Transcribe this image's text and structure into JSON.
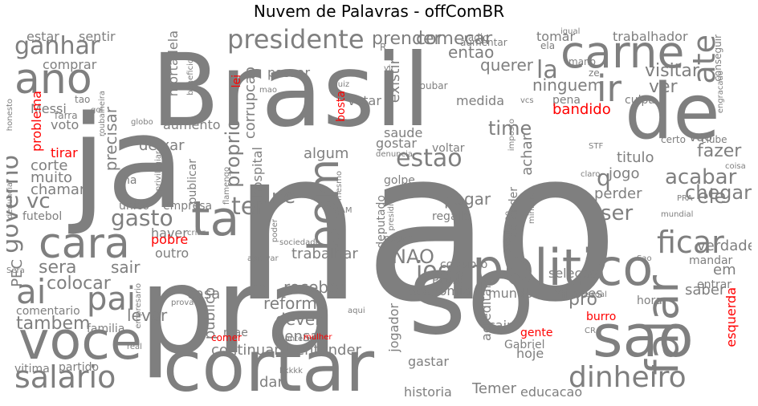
{
  "title": "Nuvem de Palavras - offComBR",
  "colors": {
    "grey": "#7f7f7f",
    "red": "#ff0000"
  },
  "words": [
    {
      "text": "nao",
      "color": "grey"
    },
    {
      "text": "pra",
      "color": "grey"
    },
    {
      "text": "Brasil",
      "color": "grey"
    },
    {
      "text": "ja",
      "color": "grey"
    },
    {
      "text": "so",
      "color": "grey"
    },
    {
      "text": "cortar",
      "color": "grey"
    },
    {
      "text": "ta",
      "color": "grey"
    },
    {
      "text": "de",
      "color": "grey"
    },
    {
      "text": "sao",
      "color": "grey"
    },
    {
      "text": "politico",
      "color": "grey"
    },
    {
      "text": "carne",
      "color": "grey"
    },
    {
      "text": "voce",
      "color": "grey"
    },
    {
      "text": "ano",
      "color": "grey"
    },
    {
      "text": "cara",
      "color": "grey"
    },
    {
      "text": "falar",
      "color": "grey"
    },
    {
      "text": "bom",
      "color": "grey"
    },
    {
      "text": "ir",
      "color": "grey"
    },
    {
      "text": "dinheiro",
      "color": "grey"
    },
    {
      "text": "ai",
      "color": "grey"
    },
    {
      "text": "salario",
      "color": "grey"
    },
    {
      "text": "pai",
      "color": "grey"
    },
    {
      "text": "ficar",
      "color": "grey"
    },
    {
      "text": "presidente",
      "color": "grey"
    },
    {
      "text": "ganhar",
      "color": "grey"
    },
    {
      "text": "estao",
      "color": "grey"
    },
    {
      "text": "governo",
      "color": "grey"
    },
    {
      "text": "ate",
      "color": "grey"
    },
    {
      "text": "jogar",
      "color": "grey"
    },
    {
      "text": "la",
      "color": "grey"
    },
    {
      "text": "ter",
      "color": "grey"
    },
    {
      "text": "gasto",
      "color": "grey"
    },
    {
      "text": "tambem",
      "color": "grey"
    },
    {
      "text": "proprio",
      "color": "grey"
    },
    {
      "text": "acabar",
      "color": "grey"
    },
    {
      "text": "fazer",
      "color": "grey"
    },
    {
      "text": "chegar",
      "color": "grey"
    },
    {
      "text": "ele",
      "color": "grey"
    },
    {
      "text": "q",
      "color": "grey"
    },
    {
      "text": "ser",
      "color": "grey"
    },
    {
      "text": "vc",
      "color": "grey"
    },
    {
      "text": "sera",
      "color": "grey"
    },
    {
      "text": "time",
      "color": "grey"
    },
    {
      "text": "visitar",
      "color": "grey"
    },
    {
      "text": "ver",
      "color": "grey"
    },
    {
      "text": "ninguem",
      "color": "grey"
    },
    {
      "text": "precisar",
      "color": "grey"
    },
    {
      "text": "prender",
      "color": "grey"
    },
    {
      "text": "comecar",
      "color": "grey"
    },
    {
      "text": "entao",
      "color": "grey"
    },
    {
      "text": "querer",
      "color": "grey"
    },
    {
      "text": "existir",
      "color": "grey"
    },
    {
      "text": "deixar",
      "color": "grey"
    },
    {
      "text": "corrupcao",
      "color": "grey"
    },
    {
      "text": "aumento",
      "color": "grey"
    },
    {
      "text": "saude",
      "color": "grey"
    },
    {
      "text": "gostar",
      "color": "grey"
    },
    {
      "text": "achar",
      "color": "grey"
    },
    {
      "text": "titulo",
      "color": "grey"
    },
    {
      "text": "jogo",
      "color": "grey"
    },
    {
      "text": "perder",
      "color": "grey"
    },
    {
      "text": "ne",
      "color": "grey"
    },
    {
      "text": "algum",
      "color": "grey"
    },
    {
      "text": "pagar",
      "color": "grey"
    },
    {
      "text": "NAO",
      "color": "grey"
    },
    {
      "text": "trabalhar",
      "color": "grey"
    },
    {
      "text": "receber",
      "color": "grey"
    },
    {
      "text": "reforma",
      "color": "grey"
    },
    {
      "text": "dever",
      "color": "grey"
    },
    {
      "text": "pensar",
      "color": "grey"
    },
    {
      "text": "continuar",
      "color": "grey"
    },
    {
      "text": "entender",
      "color": "grey"
    },
    {
      "text": "dar",
      "color": "grey"
    },
    {
      "text": "publico",
      "color": "grey"
    },
    {
      "text": "casa",
      "color": "grey"
    },
    {
      "text": "levar",
      "color": "grey"
    },
    {
      "text": "colocar",
      "color": "grey"
    },
    {
      "text": "sair",
      "color": "grey"
    },
    {
      "text": "outro",
      "color": "grey"
    },
    {
      "text": "haver",
      "color": "grey"
    },
    {
      "text": "jogador",
      "color": "grey"
    },
    {
      "text": "economia",
      "color": "grey"
    },
    {
      "text": "mundo",
      "color": "grey"
    },
    {
      "text": "acreditar",
      "color": "grey"
    },
    {
      "text": "pro",
      "color": "grey"
    },
    {
      "text": "saber",
      "color": "grey"
    },
    {
      "text": "verdade",
      "color": "grey"
    },
    {
      "text": "em",
      "color": "grey"
    },
    {
      "text": "historia",
      "color": "grey"
    },
    {
      "text": "Temer",
      "color": "grey"
    },
    {
      "text": "educacao",
      "color": "grey"
    },
    {
      "text": "hoje",
      "color": "grey"
    },
    {
      "text": "Gabriel",
      "color": "grey"
    },
    {
      "text": "cair",
      "color": "grey"
    },
    {
      "text": "gastar",
      "color": "grey"
    },
    {
      "text": "milhoes",
      "color": "grey"
    },
    {
      "text": "vao",
      "color": "grey"
    },
    {
      "text": "corte",
      "color": "grey"
    },
    {
      "text": "muito",
      "color": "grey"
    },
    {
      "text": "chamar",
      "color": "grey"
    },
    {
      "text": "voto",
      "color": "grey"
    },
    {
      "text": "Messi",
      "color": "grey"
    },
    {
      "text": "estar",
      "color": "grey"
    },
    {
      "text": "sentir",
      "color": "grey"
    },
    {
      "text": "comprar",
      "color": "grey"
    },
    {
      "text": "trabalhador",
      "color": "grey"
    },
    {
      "text": "tomar",
      "color": "grey"
    },
    {
      "text": "mortadela",
      "color": "grey"
    },
    {
      "text": "passar",
      "color": "grey"
    },
    {
      "text": "votar",
      "color": "grey"
    },
    {
      "text": "medida",
      "color": "grey"
    },
    {
      "text": "pena",
      "color": "grey"
    },
    {
      "text": "culpa",
      "color": "grey"
    },
    {
      "text": "hospital",
      "color": "grey"
    },
    {
      "text": "voltar",
      "color": "grey"
    },
    {
      "text": "deputado",
      "color": "grey"
    },
    {
      "text": "defender",
      "color": "grey"
    },
    {
      "text": "regalia",
      "color": "grey"
    },
    {
      "text": "golpe",
      "color": "grey"
    },
    {
      "text": "selecao",
      "color": "grey"
    },
    {
      "text": "pegar",
      "color": "grey"
    },
    {
      "text": "corrupto",
      "color": "grey"
    },
    {
      "text": "Paulo",
      "color": "grey"
    },
    {
      "text": "mandar",
      "color": "grey"
    },
    {
      "text": "entrar",
      "color": "grey"
    },
    {
      "text": "hora",
      "color": "grey"
    },
    {
      "text": "comentario",
      "color": "grey"
    },
    {
      "text": "familia",
      "color": "grey"
    },
    {
      "text": "vitima",
      "color": "grey"
    },
    {
      "text": "partido",
      "color": "grey"
    },
    {
      "text": "futebol",
      "color": "grey"
    },
    {
      "text": "PEC",
      "color": "grey"
    },
    {
      "text": "unico",
      "color": "grey"
    },
    {
      "text": "empresa",
      "color": "grey"
    },
    {
      "text": "publicar",
      "color": "grey"
    },
    {
      "text": "ha",
      "color": "grey"
    },
    {
      "text": "mae",
      "color": "grey"
    },
    {
      "text": "clube",
      "color": "grey"
    },
    {
      "text": "certo",
      "color": "grey"
    },
    {
      "text": "STF",
      "color": "grey"
    },
    {
      "text": "radio",
      "color": "grey"
    },
    {
      "text": "aumentar",
      "color": "grey"
    },
    {
      "text": "ela",
      "color": "grey"
    },
    {
      "text": "mano",
      "color": "grey"
    },
    {
      "text": "igual",
      "color": "grey"
    },
    {
      "text": "roubar",
      "color": "grey"
    },
    {
      "text": "vir",
      "color": "grey"
    },
    {
      "text": "juiz",
      "color": "grey"
    },
    {
      "text": "vcs",
      "color": "grey"
    },
    {
      "text": "ze",
      "color": "grey"
    },
    {
      "text": "conseguir",
      "color": "grey"
    },
    {
      "text": "engracado",
      "color": "grey"
    },
    {
      "text": "coisa",
      "color": "grey"
    },
    {
      "text": "claro",
      "color": "grey"
    },
    {
      "text": "PRA",
      "color": "grey"
    },
    {
      "text": "mundial",
      "color": "grey"
    },
    {
      "text": "Sao",
      "color": "grey"
    },
    {
      "text": "pessoal",
      "color": "grey"
    },
    {
      "text": "CR",
      "color": "grey"
    },
    {
      "text": "acontecer",
      "color": "grey"
    },
    {
      "text": "aqui",
      "color": "grey"
    },
    {
      "text": "prova",
      "color": "grey"
    },
    {
      "text": "real",
      "color": "grey"
    },
    {
      "text": "kkkkk",
      "color": "grey"
    },
    {
      "text": "Sera",
      "color": "grey"
    },
    {
      "text": "honesto",
      "color": "grey"
    },
    {
      "text": "farra",
      "color": "grey"
    },
    {
      "text": "tao",
      "color": "grey"
    },
    {
      "text": "denunciar",
      "color": "grey"
    },
    {
      "text": "gol",
      "color": "grey"
    },
    {
      "text": "roubalheira",
      "color": "grey"
    },
    {
      "text": "beneficio",
      "color": "grey"
    },
    {
      "text": "globo",
      "color": "grey"
    },
    {
      "text": "mao",
      "color": "grey"
    },
    {
      "text": "denuncia",
      "color": "grey"
    },
    {
      "text": "privilegiar",
      "color": "grey"
    },
    {
      "text": "flamengo",
      "color": "grey"
    },
    {
      "text": "mesmo",
      "color": "grey"
    },
    {
      "text": "presidio",
      "color": "grey"
    },
    {
      "text": "poder",
      "color": "grey"
    },
    {
      "text": "AM",
      "color": "grey"
    },
    {
      "text": "sociedade",
      "color": "grey"
    },
    {
      "text": "aprovar",
      "color": "grey"
    },
    {
      "text": "empresario",
      "color": "grey"
    },
    {
      "text": "criar",
      "color": "grey"
    },
    {
      "text": "populacao",
      "color": "grey"
    },
    {
      "text": "imposto",
      "color": "grey"
    },
    {
      "text": "ministra",
      "color": "grey"
    },
    {
      "text": "R",
      "color": "grey"
    },
    {
      "text": "bandido",
      "color": "red"
    },
    {
      "text": "problema",
      "color": "red"
    },
    {
      "text": "tirar",
      "color": "red"
    },
    {
      "text": "pobre",
      "color": "red"
    },
    {
      "text": "lei",
      "color": "red"
    },
    {
      "text": "bosta",
      "color": "red"
    },
    {
      "text": "mulher",
      "color": "red"
    },
    {
      "text": "gente",
      "color": "red"
    },
    {
      "text": "burro",
      "color": "red"
    },
    {
      "text": "esquerda",
      "color": "red"
    },
    {
      "text": "comer",
      "color": "red"
    }
  ]
}
